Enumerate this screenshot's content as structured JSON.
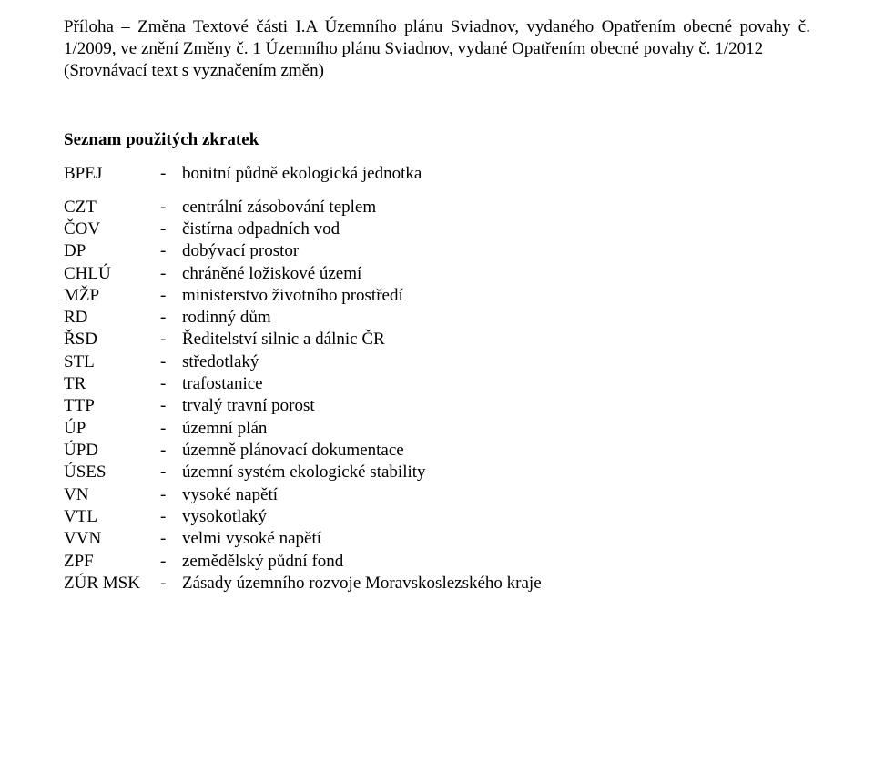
{
  "header_paragraph": "Příloha – Změna Textové části I.A Územního plánu Sviadnov, vydaného Opatřením obecné povahy č. 1/2009, ve znění Změny č. 1 Územního plánu Sviadnov, vydané Opatřením obecné povahy č. 1/2012",
  "header_subtext": "(Srovnávací text s vyznačením změn)",
  "section_heading": "Seznam použitých zkratek",
  "dash": "-",
  "group1": {
    "k0": "BPEJ",
    "v0": "bonitní půdně ekologická jednotka"
  },
  "group2": {
    "k0": "CZT",
    "v0": "centrální zásobování teplem",
    "k1": "ČOV",
    "v1": "čistírna odpadních vod",
    "k2": "DP",
    "v2": "dobývací prostor",
    "k3": "CHLÚ",
    "v3": "chráněné ložiskové území",
    "k4": "MŽP",
    "v4": "ministerstvo životního prostředí",
    "k5": "RD",
    "v5": "rodinný dům",
    "k6": "ŘSD",
    "v6": "Ředitelství silnic a dálnic ČR",
    "k7": "STL",
    "v7": "středotlaký",
    "k8": "TR",
    "v8": "trafostanice",
    "k9": "TTP",
    "v9": "trvalý travní porost",
    "k10": "ÚP",
    "v10": "územní plán",
    "k11": "ÚPD",
    "v11": "územně plánovací dokumentace",
    "k12": "ÚSES",
    "v12": "územní systém ekologické stability",
    "k13": "VN",
    "v13": "vysoké napětí",
    "k14": "VTL",
    "v14": "vysokotlaký",
    "k15": "VVN",
    "v15": "velmi vysoké napětí",
    "k16": "ZPF",
    "v16": "zemědělský půdní fond",
    "k17": "ZÚR MSK",
    "v17": "Zásady územního rozvoje Moravskoslezského kraje"
  }
}
